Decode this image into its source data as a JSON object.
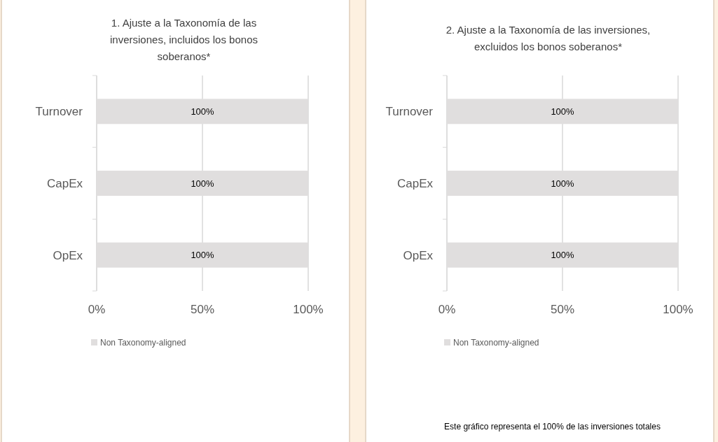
{
  "chart_data": [
    {
      "type": "bar",
      "orientation": "horizontal",
      "title": "1. Ajuste a la Taxonomía de las inversiones, incluidos los bonos soberanos*",
      "categories": [
        "Turnover",
        "CapEx",
        "OpEx"
      ],
      "series": [
        {
          "name": "Non Taxonomy-aligned",
          "color": "#e0dede",
          "values": [
            100,
            100,
            100
          ],
          "value_labels": [
            "100%",
            "100%",
            "100%"
          ]
        }
      ],
      "xlim": [
        0,
        100
      ],
      "xticks": [
        {
          "value": 0,
          "label": "0%"
        },
        {
          "value": 50,
          "label": "50%"
        },
        {
          "value": 100,
          "label": "100%"
        }
      ],
      "grid": "x",
      "legend": "bottom"
    },
    {
      "type": "bar",
      "orientation": "horizontal",
      "title": "2. Ajuste a la Taxonomía de las inversiones, excluidos los bonos soberanos*",
      "categories": [
        "Turnover",
        "CapEx",
        "OpEx"
      ],
      "series": [
        {
          "name": "Non Taxonomy-aligned",
          "color": "#e0dede",
          "values": [
            100,
            100,
            100
          ],
          "value_labels": [
            "100%",
            "100%",
            "100%"
          ]
        }
      ],
      "xlim": [
        0,
        100
      ],
      "xticks": [
        {
          "value": 0,
          "label": "0%"
        },
        {
          "value": 50,
          "label": "50%"
        },
        {
          "value": 100,
          "label": "100%"
        }
      ],
      "grid": "x",
      "legend": "bottom",
      "annotations": [
        "Este gráfico representa el 100% de las inversiones totales"
      ]
    }
  ]
}
